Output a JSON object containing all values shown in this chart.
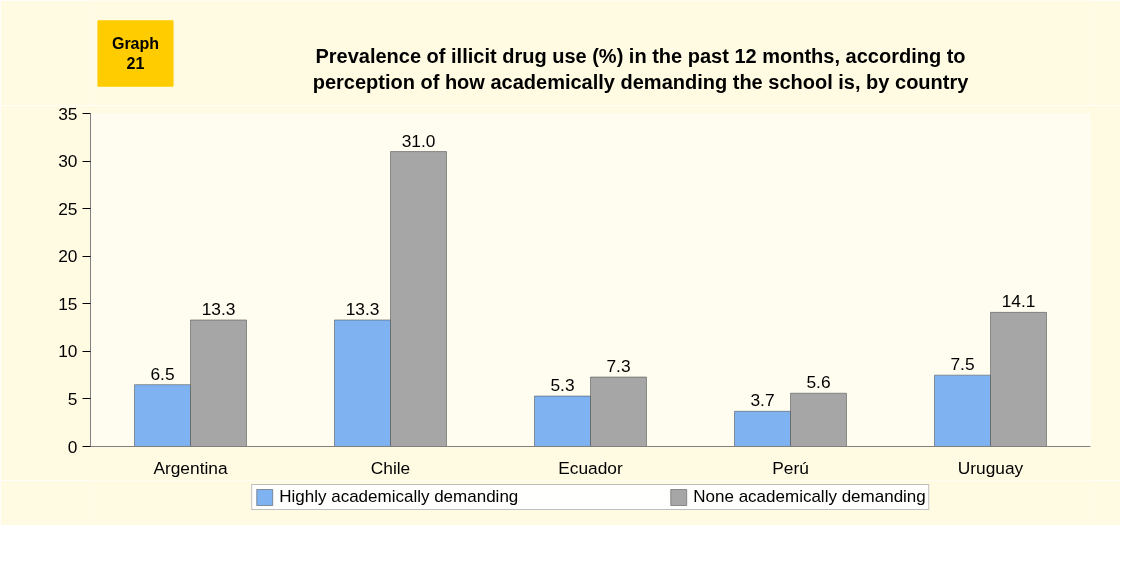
{
  "chart_data": {
    "type": "bar",
    "title": "Prevalence of illicit drug use (%) in the past 12 months, according to\nperception of how academically demanding the school is, by country",
    "annotations": [
      "Graph\n21"
    ],
    "categories": [
      "Argentina",
      "Chile",
      "Ecuador",
      "Perú",
      "Uruguay"
    ],
    "series": [
      {
        "name": "Highly academically demanding",
        "color": "#7fb2f0",
        "values": [
          6.5,
          13.3,
          5.3,
          3.7,
          7.5
        ],
        "value_labels": [
          "6.5",
          "13.3",
          "5.3",
          "3.7",
          "7.5"
        ]
      },
      {
        "name": "None academically demanding",
        "color": "#a6a6a6",
        "values": [
          13.3,
          31.0,
          7.3,
          5.6,
          14.1
        ],
        "value_labels": [
          "13.3",
          "31.0",
          "7.3",
          "5.6",
          "14.1"
        ]
      }
    ],
    "ylim": [
      0,
      35
    ],
    "yticks": [
      0,
      5,
      10,
      15,
      20,
      25,
      30,
      35
    ],
    "grid": false,
    "legend": "bottom"
  }
}
